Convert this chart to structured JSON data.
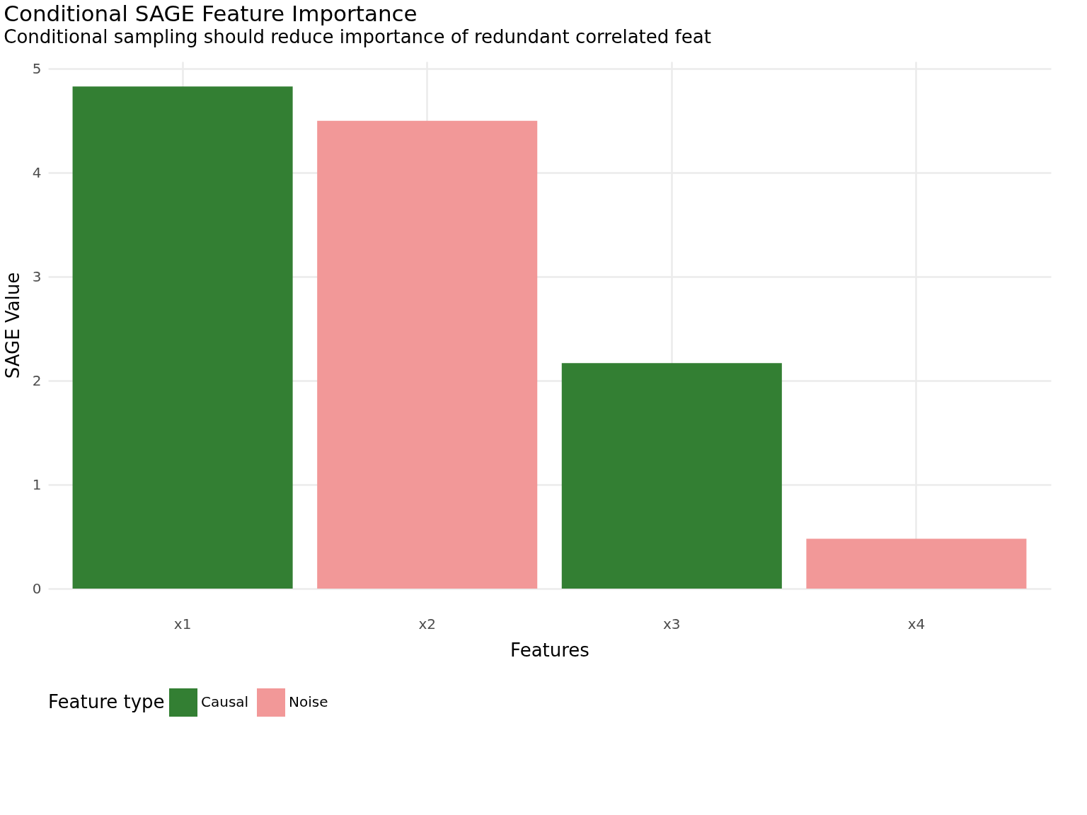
{
  "chart_data": {
    "type": "bar",
    "title": "Conditional SAGE Feature Importance",
    "subtitle": "Conditional sampling should reduce importance of redundant correlated feat",
    "xlabel": "Features",
    "ylabel": "SAGE Value",
    "legend_title": "Feature type",
    "categories": [
      "x1",
      "x2",
      "x3",
      "x4"
    ],
    "series": [
      {
        "name": "Causal",
        "color": "#337f33",
        "values": [
          4.83,
          null,
          2.17,
          null
        ]
      },
      {
        "name": "Noise",
        "color": "#f29898",
        "values": [
          null,
          4.5,
          null,
          0.48
        ]
      }
    ],
    "ylim": [
      0,
      5.07
    ],
    "yticks": [
      0,
      1,
      2,
      3,
      4,
      5
    ],
    "grid": true,
    "legend": "bottom"
  }
}
